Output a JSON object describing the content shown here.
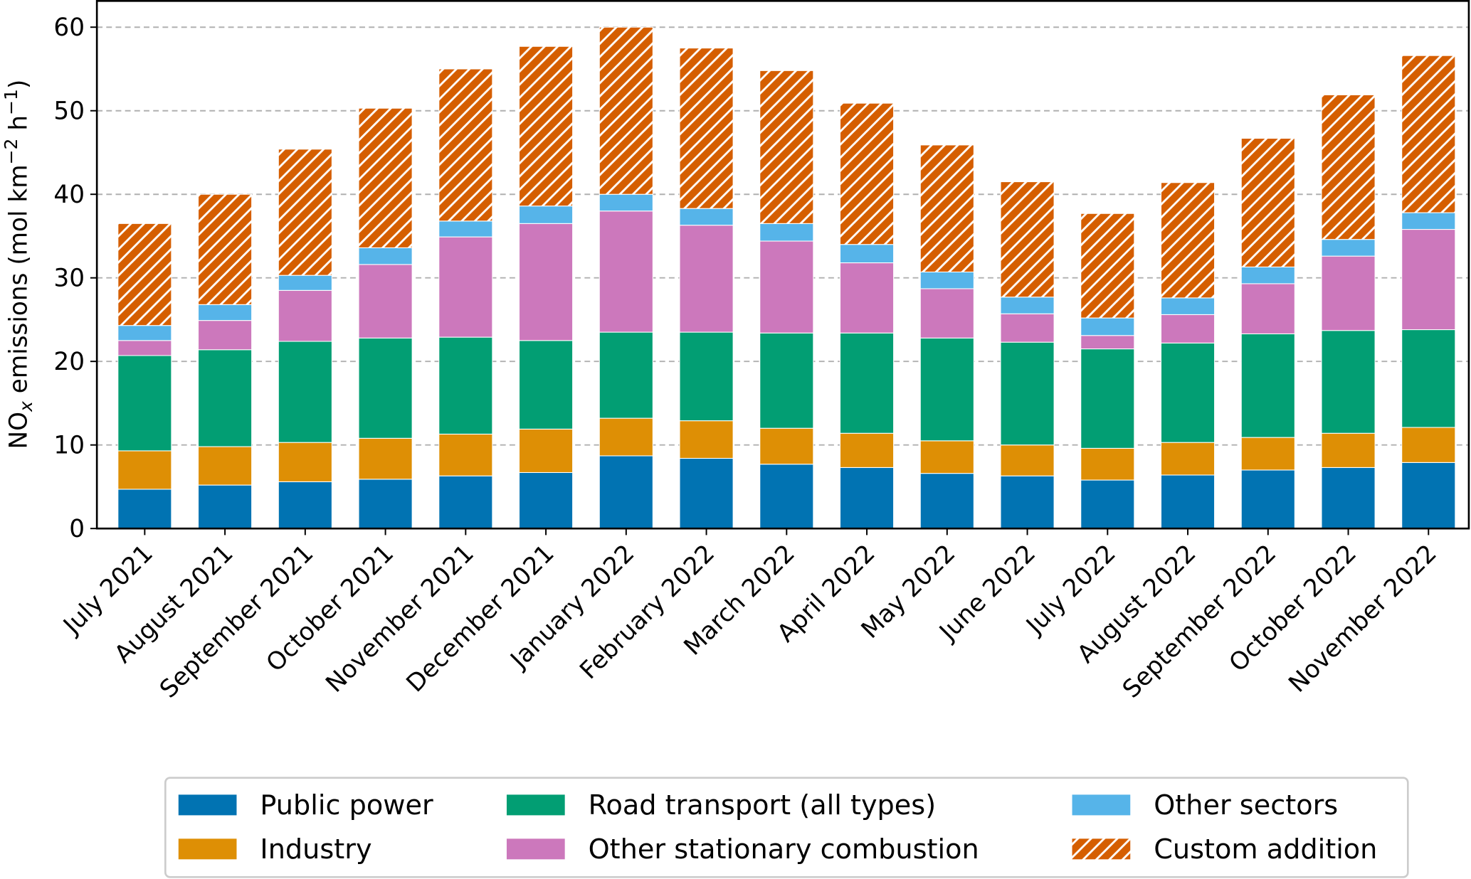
{
  "chart_data": {
    "type": "bar",
    "stacked": true,
    "title": "",
    "xlabel": "",
    "ylabel": {
      "main": "NO",
      "sub": "x",
      "rest1": " emissions (mol km",
      "sup1": "−2",
      "rest2": " h",
      "sup2": "−1",
      "rest3": ")"
    },
    "ylim": [
      0,
      62
    ],
    "yticks": [
      0,
      10,
      20,
      30,
      40,
      50,
      60
    ],
    "grid": "horizontal dashed",
    "legend_placement": "bottom",
    "categories": [
      "July 2021",
      "August 2021",
      "September 2021",
      "October 2021",
      "November 2021",
      "December 2021",
      "January 2022",
      "February 2022",
      "March 2022",
      "April 2022",
      "May 2022",
      "June 2022",
      "July 2022",
      "August 2022",
      "September 2022",
      "October 2022",
      "November 2022"
    ],
    "series": [
      {
        "name": "Public power",
        "color": "#0173b2",
        "hatch": false,
        "values": [
          4.7,
          5.2,
          5.6,
          5.9,
          6.3,
          6.7,
          8.7,
          8.4,
          7.7,
          7.3,
          6.6,
          6.3,
          5.8,
          6.4,
          7.0,
          7.3,
          7.9
        ]
      },
      {
        "name": "Industry",
        "color": "#de8f05",
        "hatch": false,
        "values": [
          4.6,
          4.6,
          4.7,
          4.9,
          5.0,
          5.2,
          4.5,
          4.5,
          4.3,
          4.1,
          3.9,
          3.7,
          3.8,
          3.9,
          3.9,
          4.1,
          4.2
        ]
      },
      {
        "name": "Road transport (all types)",
        "color": "#029e73",
        "hatch": false,
        "values": [
          11.4,
          11.6,
          12.1,
          12.0,
          11.6,
          10.6,
          10.3,
          10.6,
          11.4,
          12.0,
          12.3,
          12.3,
          11.9,
          11.9,
          12.4,
          12.3,
          11.7
        ]
      },
      {
        "name": "Other stationary combustion",
        "color": "#cc78bc",
        "hatch": false,
        "values": [
          1.8,
          3.5,
          6.1,
          8.8,
          12.0,
          14.0,
          14.5,
          12.8,
          11.0,
          8.4,
          5.9,
          3.4,
          1.6,
          3.4,
          6.0,
          8.9,
          12.0
        ]
      },
      {
        "name": "Other sectors",
        "color": "#56b4e9",
        "hatch": false,
        "values": [
          1.8,
          1.9,
          1.8,
          2.0,
          1.9,
          2.1,
          2.0,
          2.0,
          2.1,
          2.2,
          2.0,
          2.0,
          2.1,
          2.0,
          2.0,
          2.0,
          2.0
        ]
      },
      {
        "name": "Custom addition",
        "color": "#d55e00",
        "hatch": true,
        "values": [
          12.2,
          13.2,
          15.1,
          16.7,
          18.2,
          19.1,
          20.0,
          19.2,
          18.3,
          16.9,
          15.2,
          13.8,
          12.5,
          13.8,
          15.4,
          17.3,
          18.8
        ]
      }
    ]
  }
}
